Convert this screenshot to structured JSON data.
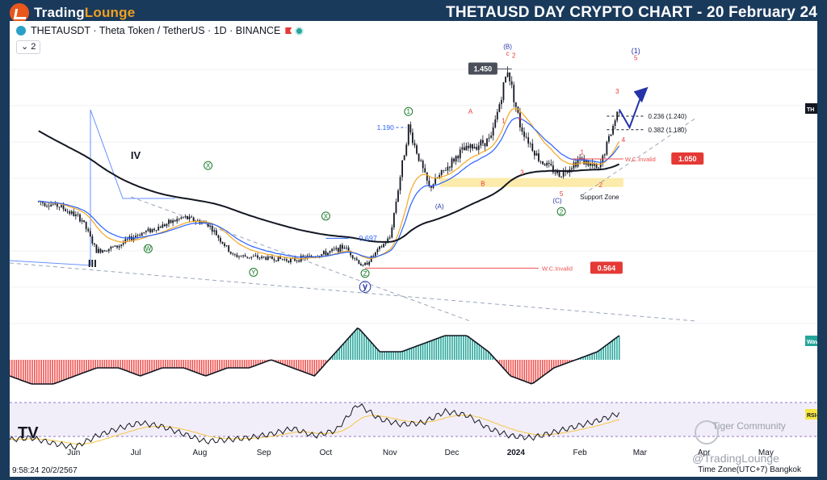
{
  "header": {
    "logo": "TradingLounge",
    "logo_part_a": "Trading",
    "logo_part_b": "Lounge",
    "headline": "THETAUSD DAY CRYPTO CHART - 20 February 24"
  },
  "legend": {
    "symbol_line": "THETAUSDT · Theta Token / TetherUS · 1D · BINANCE",
    "indicator_count": "2"
  },
  "right_tags": {
    "price_cut": "TH",
    "wave": "Wave",
    "rsi": "RSI-"
  },
  "time_axis": [
    "Jun",
    "Jul",
    "Aug",
    "Sep",
    "Oct",
    "Nov",
    "Dec",
    "2024",
    "Jan",
    "Feb",
    "Mar",
    "Apr",
    "May"
  ],
  "footer": {
    "timestamp": "9:58:24 20/2/2567",
    "timezone": "Time Zone(UTC+7) Bangkok",
    "tv_logo": "TV"
  },
  "watermarks": {
    "community": "Tiger Community",
    "handle": "@TradingLounge"
  },
  "colors": {
    "up": "#26a69a",
    "down": "#ef5350",
    "ema_slow": "#131722",
    "ema_fast_blue": "#2962ff",
    "ema_fast_orange": "#f5a623",
    "wave_label_red": "#e53935",
    "wave_label_green": "#1b7a2b",
    "wave_label_blue": "#2433a8",
    "support_zone": "#fbe79c"
  },
  "chart_data": {
    "type": "line",
    "title": "THETAUSDT · Theta Token / TetherUS · 1D · BINANCE",
    "price_points": [
      {
        "date": "2023-05-15",
        "price": 0.86
      },
      {
        "date": "2023-05-25",
        "price": 0.84
      },
      {
        "date": "2023-06-05",
        "price": 0.78
      },
      {
        "date": "2023-06-12",
        "price": 0.64
      },
      {
        "date": "2023-06-22",
        "price": 0.66
      },
      {
        "date": "2023-07-01",
        "price": 0.71
      },
      {
        "date": "2023-07-13",
        "price": 0.75
      },
      {
        "date": "2023-07-24",
        "price": 0.79
      },
      {
        "date": "2023-08-05",
        "price": 0.76
      },
      {
        "date": "2023-08-17",
        "price": 0.62
      },
      {
        "date": "2023-09-01",
        "price": 0.61
      },
      {
        "date": "2023-09-15",
        "price": 0.6
      },
      {
        "date": "2023-10-01",
        "price": 0.63
      },
      {
        "date": "2023-10-10",
        "price": 0.66
      },
      {
        "date": "2023-10-19",
        "price": 0.57
      },
      {
        "date": "2023-11-01",
        "price": 0.7
      },
      {
        "date": "2023-11-10",
        "price": 1.19
      },
      {
        "date": "2023-11-20",
        "price": 0.92
      },
      {
        "date": "2023-12-05",
        "price": 1.08
      },
      {
        "date": "2023-12-20",
        "price": 1.14
      },
      {
        "date": "2023-12-28",
        "price": 1.45
      },
      {
        "date": "2024-01-03",
        "price": 1.2
      },
      {
        "date": "2024-01-12",
        "price": 1.05
      },
      {
        "date": "2024-01-22",
        "price": 0.98
      },
      {
        "date": "2024-02-01",
        "price": 1.05
      },
      {
        "date": "2024-02-10",
        "price": 1.0
      },
      {
        "date": "2024-02-20",
        "price": 1.28
      }
    ],
    "price_levels": [
      {
        "label": "1.450",
        "value": 1.45
      },
      {
        "label": "1.190",
        "value": 1.19
      },
      {
        "label": "0.697",
        "value": 0.697
      },
      {
        "label": "W.C.Invalid",
        "value": 1.05,
        "badge": "1.050"
      },
      {
        "label": "W.C.Invalid",
        "value": 0.564,
        "badge": "0.564"
      },
      {
        "label": "0.236 (1.240)",
        "value": 1.24
      },
      {
        "label": "0.382 (1.180)",
        "value": 1.18
      }
    ],
    "annotations": [
      "Support Zone",
      "IV",
      "III",
      "(B)",
      "c",
      "(A)",
      "(C)",
      "(1)",
      "A",
      "B",
      "W",
      "X",
      "Y",
      "Z",
      "y",
      "1",
      "2",
      "3",
      "4",
      "5"
    ],
    "oscillators": [
      {
        "name": "Wave",
        "values": [
          -2,
          -3,
          -3,
          -2,
          -1,
          -1,
          -2,
          -1,
          -1,
          -2,
          -1,
          -1,
          0,
          -1,
          -2,
          1,
          4,
          1,
          1,
          2,
          3,
          3,
          1,
          -2,
          -3,
          -1,
          0,
          1,
          3
        ]
      },
      {
        "name": "RSI",
        "values": [
          38,
          40,
          34,
          30,
          42,
          50,
          56,
          52,
          44,
          36,
          38,
          40,
          44,
          50,
          42,
          48,
          76,
          60,
          54,
          56,
          68,
          64,
          50,
          42,
          40,
          46,
          52,
          58,
          66
        ]
      }
    ]
  }
}
